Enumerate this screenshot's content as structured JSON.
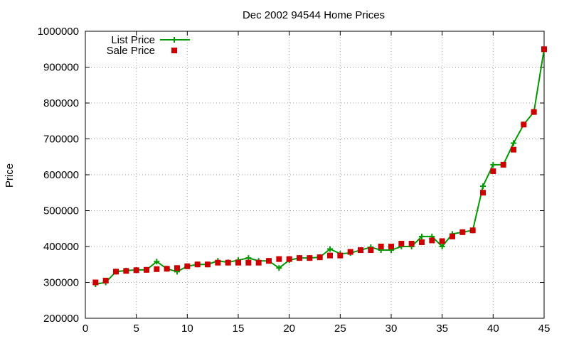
{
  "chart_data": {
    "type": "line",
    "title": "Dec 2002 94544 Home Prices",
    "xlabel": "",
    "ylabel": "Price",
    "xlim": [
      0,
      45
    ],
    "ylim": [
      200000,
      1000000
    ],
    "xticks": [
      0,
      5,
      10,
      15,
      20,
      25,
      30,
      35,
      40,
      45
    ],
    "yticks": [
      200000,
      300000,
      400000,
      500000,
      600000,
      700000,
      800000,
      900000,
      1000000
    ],
    "grid": true,
    "legend_position": "top-left",
    "x": [
      1,
      2,
      3,
      4,
      5,
      6,
      7,
      8,
      9,
      10,
      11,
      12,
      13,
      14,
      15,
      16,
      17,
      18,
      19,
      20,
      21,
      22,
      23,
      24,
      25,
      26,
      27,
      28,
      29,
      30,
      31,
      32,
      33,
      34,
      35,
      36,
      37,
      38,
      39,
      40,
      41,
      42,
      43,
      44,
      45
    ],
    "series": [
      {
        "name": "List Price",
        "style": "line-plus",
        "color": "#009900",
        "values": [
          295000,
          300000,
          330000,
          333000,
          335000,
          335000,
          358000,
          338000,
          330000,
          345000,
          350000,
          350000,
          360000,
          356000,
          362000,
          368000,
          360000,
          360000,
          340000,
          362000,
          368000,
          368000,
          370000,
          393000,
          380000,
          382000,
          390000,
          398000,
          390000,
          390000,
          400000,
          400000,
          428000,
          428000,
          400000,
          435000,
          440000,
          445000,
          568000,
          628000,
          628000,
          688000,
          740000,
          775000,
          950000
        ]
      },
      {
        "name": "Sale Price",
        "style": "square-marker",
        "color": "#cc0000",
        "values": [
          300000,
          305000,
          330000,
          332000,
          334000,
          335000,
          337000,
          338000,
          340000,
          345000,
          350000,
          350000,
          355000,
          355000,
          355000,
          355000,
          355000,
          360000,
          365000,
          365000,
          368000,
          368000,
          370000,
          375000,
          375000,
          385000,
          390000,
          390000,
          400000,
          400000,
          408000,
          408000,
          412000,
          417000,
          415000,
          428000,
          440000,
          445000,
          550000,
          610000,
          628000,
          670000,
          740000,
          775000,
          950000
        ]
      }
    ]
  }
}
